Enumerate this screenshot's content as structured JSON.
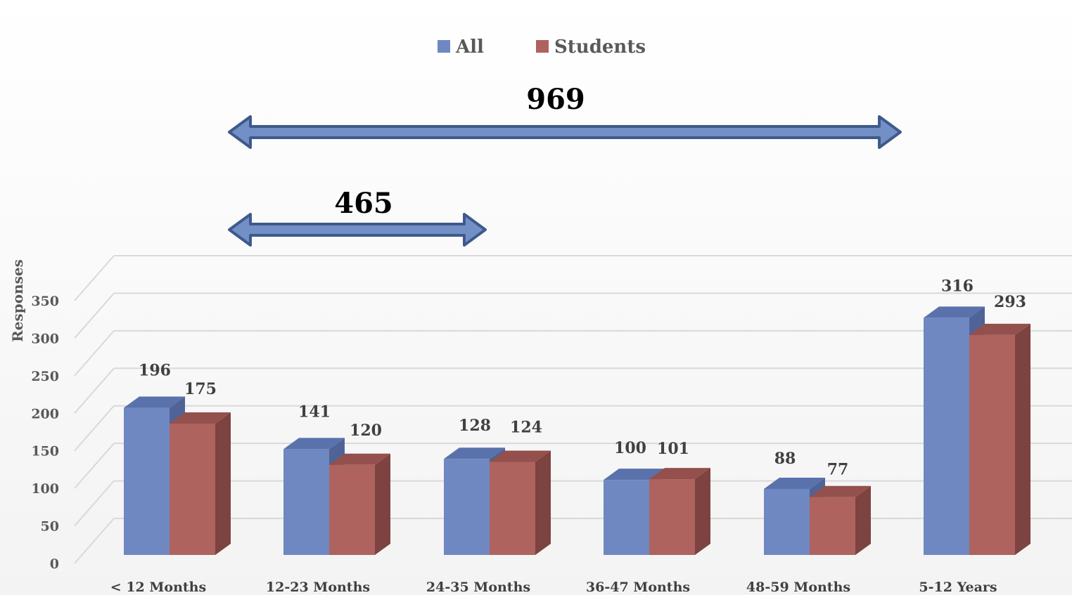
{
  "chart_data": {
    "type": "bar",
    "title": "",
    "xlabel": "",
    "ylabel": "Responses",
    "ylim": [
      0,
      350
    ],
    "yticks": [
      0,
      50,
      100,
      150,
      200,
      250,
      300,
      350
    ],
    "categories": [
      "< 12 Months",
      "12-23 Months",
      "24-35 Months",
      "36-47 Months",
      "48-59 Months",
      "5-12 Years"
    ],
    "series": [
      {
        "name": "All",
        "values": [
          196,
          141,
          128,
          100,
          88,
          316
        ],
        "color": "#7088C2",
        "side_color": "#4F6396",
        "top_color": "#5A72AB"
      },
      {
        "name": "Students",
        "values": [
          175,
          120,
          124,
          101,
          77,
          293
        ],
        "color": "#AE635F",
        "side_color": "#7C4340",
        "top_color": "#94504C"
      }
    ],
    "grid": true,
    "legend_position": "top-center",
    "style": "3d-clustered-column",
    "annotations": [
      {
        "label": "969",
        "from_category": "12-23 Months",
        "to_category": "5-12 Years",
        "type": "double-arrow"
      },
      {
        "label": "465",
        "from_category": "12-23 Months",
        "to_category": "24-35 Months",
        "type": "double-arrow"
      }
    ]
  }
}
